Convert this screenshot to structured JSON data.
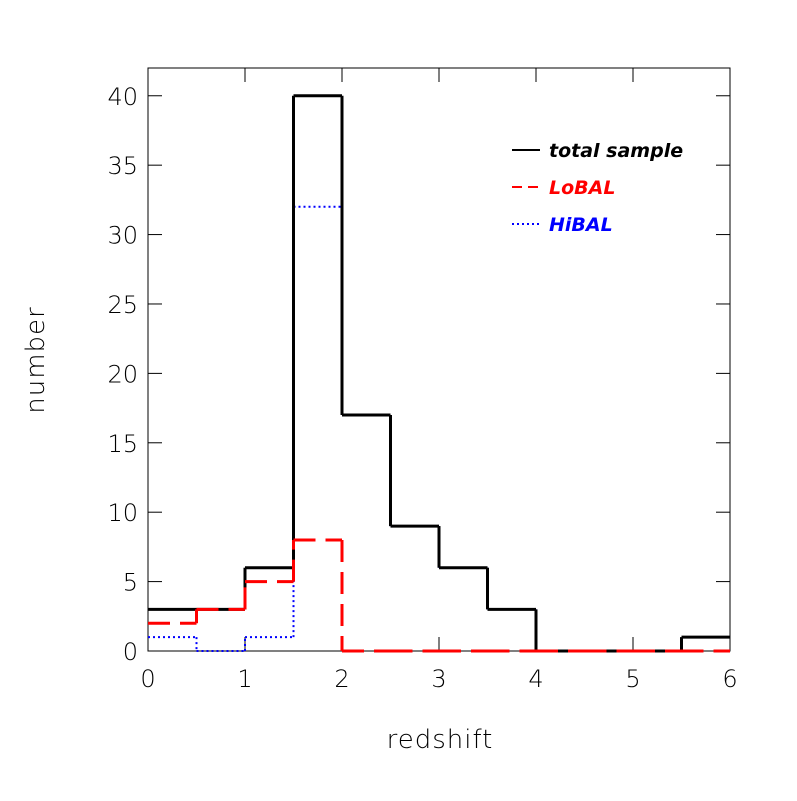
{
  "chart_data": {
    "type": "step-histogram",
    "xlabel": "redshift",
    "ylabel": "number",
    "bins": [
      0,
      0.5,
      1,
      1.5,
      2,
      2.5,
      3,
      3.5,
      4,
      4.5,
      5,
      5.5,
      6
    ],
    "series": [
      {
        "name": "total sample",
        "color": "#000000",
        "style": "solid",
        "values": [
          3,
          3,
          6,
          40,
          17,
          9,
          6,
          3,
          0,
          0,
          0,
          1
        ]
      },
      {
        "name": "LoBAL",
        "color": "#ff0000",
        "style": "dashed",
        "values": [
          2,
          3,
          5,
          8,
          0,
          0,
          0,
          0,
          0,
          0,
          0,
          0
        ]
      },
      {
        "name": "HiBAL",
        "color": "#0000ff",
        "style": "dotted",
        "values": [
          1,
          0,
          1,
          32,
          17,
          9,
          6,
          3,
          0,
          0,
          0,
          1
        ]
      }
    ],
    "xlim": [
      0,
      6
    ],
    "ylim": [
      0,
      42
    ],
    "xticks": [
      0,
      1,
      2,
      3,
      4,
      5,
      6
    ],
    "yticks": [
      0,
      5,
      10,
      15,
      20,
      25,
      30,
      35,
      40
    ],
    "legend": "upper right"
  }
}
